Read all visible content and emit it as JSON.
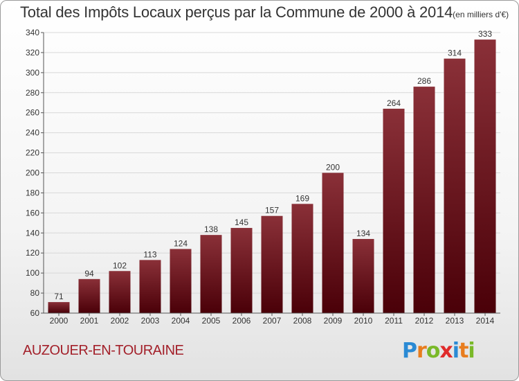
{
  "title": "Total des Impôts Locaux perçus par la Commune de 2000 à 2014",
  "title_unit": "(en milliers d'€)",
  "commune": "AUZOUER-EN-TOURAINE",
  "brand": {
    "letters": [
      "P",
      "r",
      "o",
      "x",
      "i",
      "t",
      "i"
    ],
    "colors": [
      "#2a8ad4",
      "#e87d1e",
      "#7ab929",
      "#e02b2b",
      "#2a8ad4",
      "#e87d1e",
      "#7ab929"
    ]
  },
  "colors": {
    "bar_top": "#8a3038",
    "bar_bottom": "#4a0008",
    "grid": "#d8d8d8",
    "axis_text": "#333333"
  },
  "chart_data": {
    "type": "bar",
    "categories": [
      "2000",
      "2001",
      "2002",
      "2003",
      "2004",
      "2005",
      "2006",
      "2007",
      "2008",
      "2009",
      "2010",
      "2011",
      "2012",
      "2013",
      "2014"
    ],
    "values": [
      71,
      94,
      102,
      113,
      124,
      138,
      145,
      157,
      169,
      200,
      134,
      264,
      286,
      314,
      333
    ],
    "ylim": [
      60,
      340
    ],
    "yticks": [
      60,
      80,
      100,
      120,
      140,
      160,
      180,
      200,
      220,
      240,
      260,
      280,
      300,
      320,
      340
    ],
    "grid": true,
    "legend": "none"
  }
}
